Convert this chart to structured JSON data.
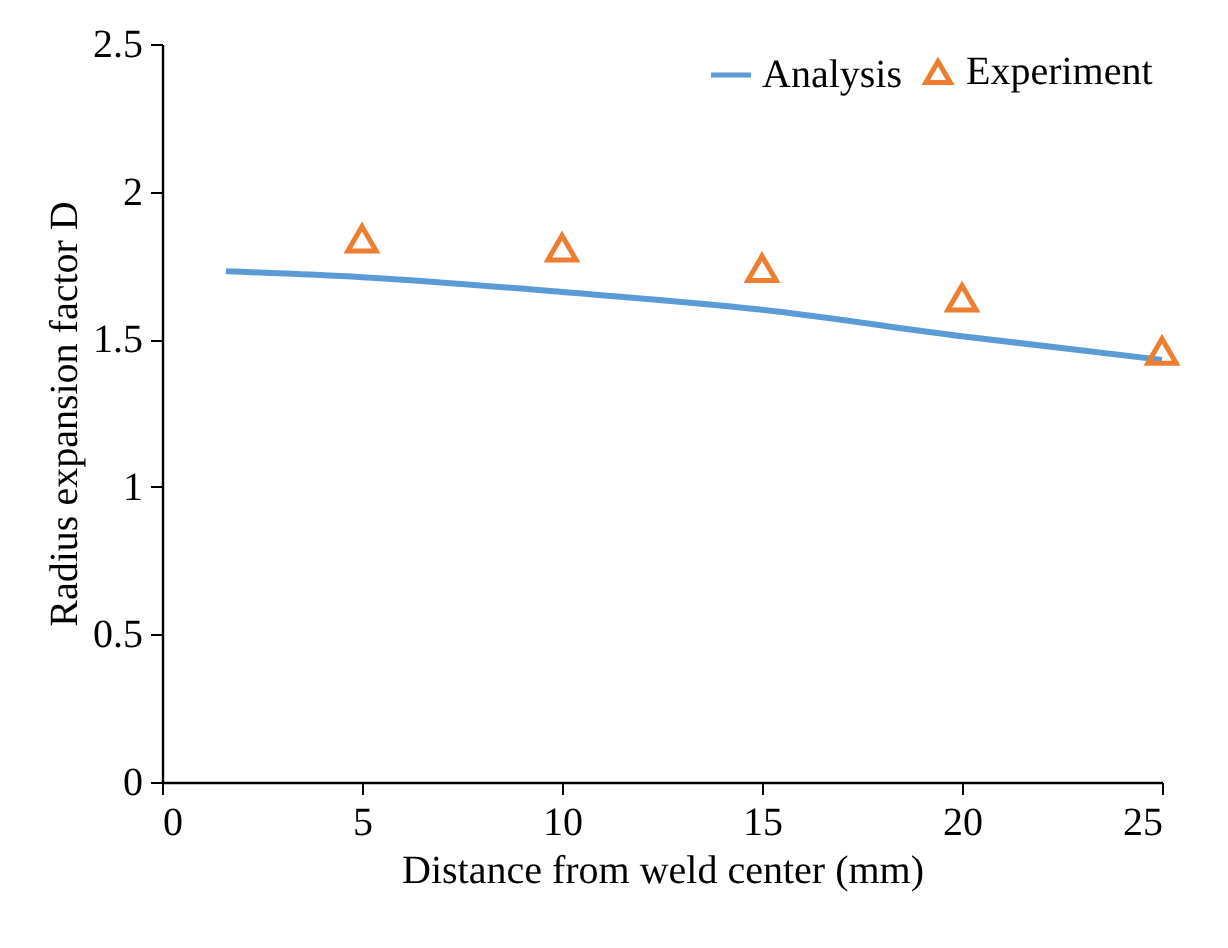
{
  "chart_data": {
    "type": "line",
    "xlabel": "Distance from weld center (mm)",
    "ylabel": "Radius expansion factor D",
    "xlim": [
      0,
      25
    ],
    "xticks": [
      0,
      5,
      10,
      15,
      20,
      25
    ],
    "ylim": [
      0,
      2.5
    ],
    "yticks": [
      0,
      0.5,
      1,
      1.5,
      2,
      2.5
    ],
    "grid": false,
    "legend": "top right",
    "series": [
      {
        "name": "Analysis",
        "color": "#5b9bd5",
        "x": [
          1.6,
          5,
          10,
          15,
          20,
          25
        ],
        "values": [
          1.73,
          1.71,
          1.66,
          1.6,
          1.51,
          1.43
        ],
        "marker": "none"
      },
      {
        "name": "Experiment",
        "type": "scatter",
        "color": "#ed7d31",
        "x": [
          5,
          10,
          15,
          20,
          25
        ],
        "values": [
          1.84,
          1.81,
          1.74,
          1.64,
          1.46
        ],
        "marker": "triangle"
      }
    ]
  }
}
